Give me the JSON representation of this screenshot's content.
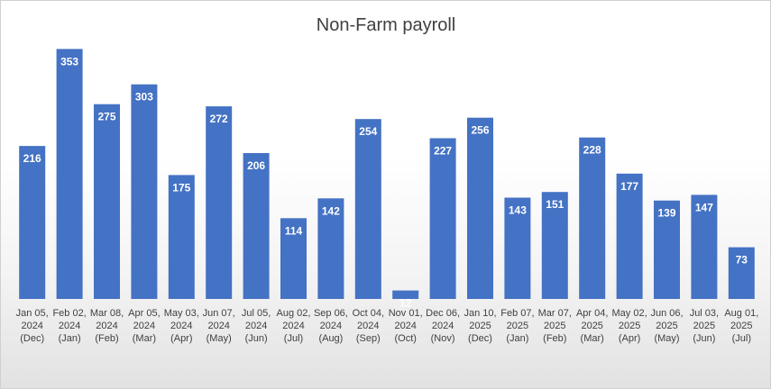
{
  "chart_data": {
    "type": "bar",
    "title": "Non-Farm payroll",
    "xlabel": "",
    "ylabel": "",
    "ylim": [
      0,
      370
    ],
    "grid": false,
    "legend": "none",
    "bar_color": "#4472c4",
    "categories": [
      [
        "Jan 05,",
        "2024",
        "(Dec)"
      ],
      [
        "Feb 02,",
        "2024",
        "(Jan)"
      ],
      [
        "Mar 08,",
        "2024",
        "(Feb)"
      ],
      [
        "Apr 05,",
        "2024",
        "(Mar)"
      ],
      [
        "May 03,",
        "2024",
        "(Apr)"
      ],
      [
        "Jun 07,",
        "2024",
        "(May)"
      ],
      [
        "Jul 05,",
        "2024",
        "(Jun)"
      ],
      [
        "Aug 02,",
        "2024",
        "(Jul)"
      ],
      [
        "Sep 06,",
        "2024",
        "(Aug)"
      ],
      [
        "Oct 04,",
        "2024",
        "(Sep)"
      ],
      [
        "Nov 01,",
        "2024",
        "(Oct)"
      ],
      [
        "Dec 06,",
        "2024",
        "(Nov)"
      ],
      [
        "Jan 10,",
        "2025",
        "(Dec)"
      ],
      [
        "Feb 07,",
        "2025",
        "(Jan)"
      ],
      [
        "Mar 07,",
        "2025",
        "(Feb)"
      ],
      [
        "Apr 04,",
        "2025",
        "(Mar)"
      ],
      [
        "May 02,",
        "2025",
        "(Apr)"
      ],
      [
        "Jun 06,",
        "2025",
        "(May)"
      ],
      [
        "Jul 03,",
        "2025",
        "(Jun)"
      ],
      [
        "Aug 01,",
        "2025",
        "(Jul)"
      ]
    ],
    "values": [
      216,
      353,
      275,
      303,
      175,
      272,
      206,
      114,
      142,
      254,
      12,
      227,
      256,
      143,
      151,
      228,
      177,
      139,
      147,
      73
    ],
    "data_labels": [
      "216",
      "353",
      "275",
      "303",
      "175",
      "272",
      "206",
      "114",
      "142",
      "254",
      "12",
      "227",
      "256",
      "143",
      "151",
      "228",
      "177",
      "139",
      "147",
      "73"
    ]
  }
}
